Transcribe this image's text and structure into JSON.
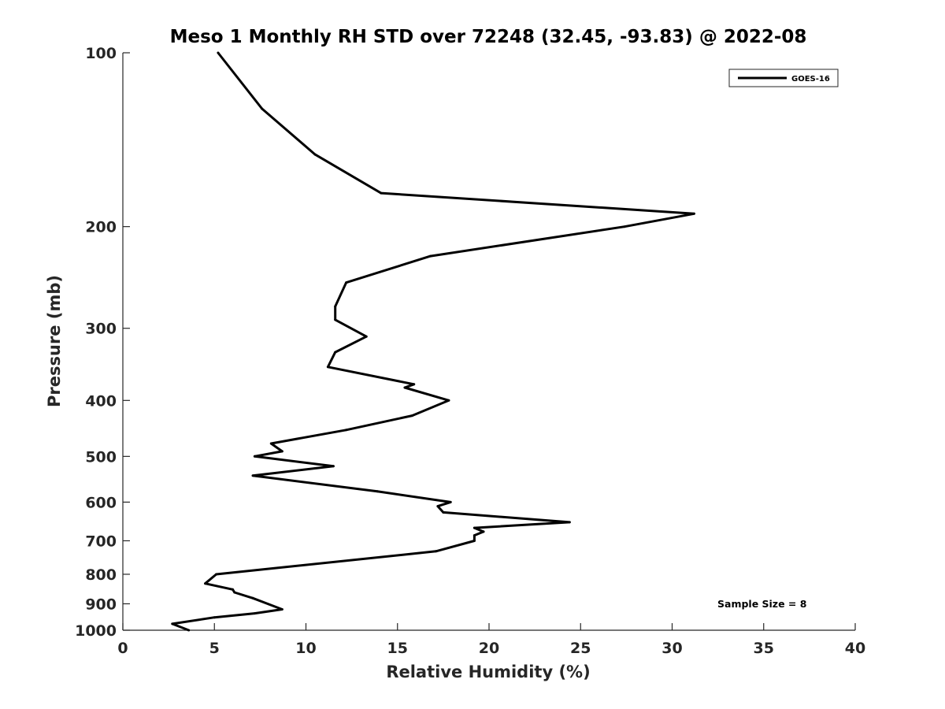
{
  "chart_data": {
    "type": "line",
    "title": "Meso 1 Monthly RH STD over 72248 (32.45, -93.83) @ 2022-08",
    "xlabel": "Relative Humidity (%)",
    "ylabel": "Pressure (mb)",
    "xlim": [
      0,
      40
    ],
    "ylim": [
      100,
      1000
    ],
    "yscale": "log",
    "yreversed": true,
    "xticks": [
      "0",
      "5",
      "10",
      "15",
      "20",
      "25",
      "30",
      "35",
      "40"
    ],
    "yticks": [
      "100",
      "200",
      "300",
      "400",
      "500",
      "600",
      "700",
      "800",
      "900",
      "1000"
    ],
    "grid": false,
    "legend": {
      "position": "top-right",
      "entries": [
        "GOES-16"
      ]
    },
    "annotation": "Sample Size = 8",
    "series": [
      {
        "name": "GOES-16",
        "color": "#000000",
        "points": [
          [
            5.2,
            100
          ],
          [
            7.6,
            125
          ],
          [
            10.5,
            150
          ],
          [
            14.1,
            175
          ],
          [
            31.2,
            190
          ],
          [
            27.4,
            200
          ],
          [
            16.8,
            225
          ],
          [
            12.2,
            250
          ],
          [
            11.6,
            275
          ],
          [
            11.6,
            290
          ],
          [
            13.3,
            310
          ],
          [
            11.6,
            330
          ],
          [
            11.2,
            350
          ],
          [
            15.9,
            375
          ],
          [
            15.4,
            380
          ],
          [
            17.8,
            400
          ],
          [
            15.8,
            425
          ],
          [
            12.2,
            450
          ],
          [
            8.1,
            475
          ],
          [
            8.7,
            490
          ],
          [
            7.2,
            500
          ],
          [
            11.5,
            520
          ],
          [
            7.1,
            540
          ],
          [
            13.9,
            575
          ],
          [
            17.9,
            600
          ],
          [
            17.2,
            610
          ],
          [
            17.5,
            625
          ],
          [
            24.4,
            650
          ],
          [
            19.2,
            665
          ],
          [
            19.7,
            675
          ],
          [
            19.2,
            685
          ],
          [
            19.2,
            700
          ],
          [
            17.1,
            730
          ],
          [
            5.1,
            800
          ],
          [
            4.5,
            830
          ],
          [
            6.0,
            850
          ],
          [
            6.1,
            860
          ],
          [
            7.1,
            880
          ],
          [
            8.7,
            920
          ],
          [
            7.2,
            935
          ],
          [
            5.0,
            950
          ],
          [
            2.7,
            975
          ],
          [
            3.6,
            1000
          ]
        ]
      }
    ]
  }
}
